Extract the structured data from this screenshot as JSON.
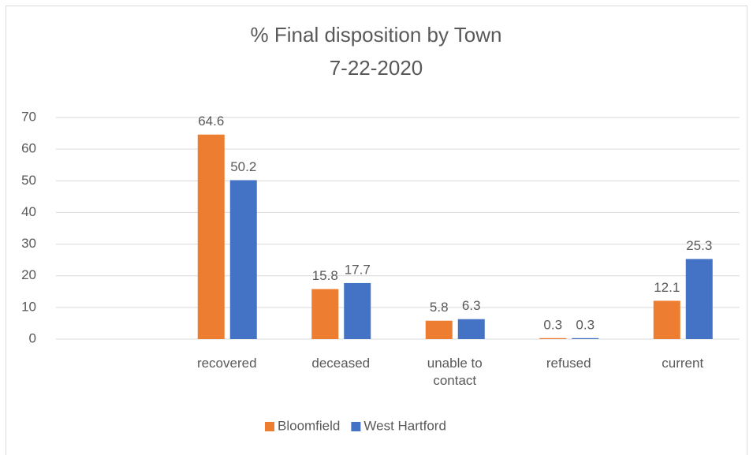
{
  "chart_data": {
    "type": "bar",
    "title": "% Final disposition by Town",
    "subtitle": "7-22-2020",
    "categories": [
      null,
      "recovered",
      "deceased",
      "unable to contact",
      "refused",
      "current"
    ],
    "series": [
      {
        "name": "Bloomfield",
        "color": "#ed7d31",
        "values": [
          null,
          64.6,
          15.8,
          5.8,
          0.3,
          12.1
        ]
      },
      {
        "name": "West Hartford",
        "color": "#4472c4",
        "values": [
          null,
          50.2,
          17.7,
          6.3,
          0.3,
          25.3
        ]
      }
    ],
    "ylim": [
      0,
      70
    ],
    "yticks": [
      0,
      10,
      20,
      30,
      40,
      50,
      60,
      70
    ],
    "grid": true,
    "legend": "bottom"
  }
}
